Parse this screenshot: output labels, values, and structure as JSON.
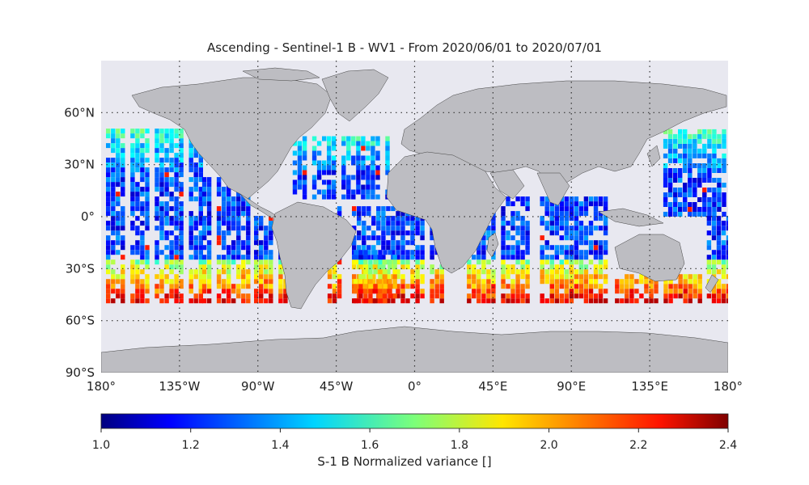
{
  "title": "Ascending - Sentinel-1 B - WV1 - From 2020/06/01 to 2020/07/01",
  "map": {
    "projection": "equirectangular",
    "lon_range": [
      -180,
      180
    ],
    "lat_range": [
      -90,
      90
    ],
    "ocean_color": "#e8e8f0",
    "land_color": "#bdbdc2",
    "grid_style": "dotted",
    "lat_labels": [
      "60°N",
      "30°N",
      "0°",
      "30°S",
      "60°S",
      "90°S"
    ],
    "lat_values": [
      60,
      30,
      0,
      -30,
      -60,
      -90
    ],
    "lon_labels": [
      "180°",
      "135°W",
      "90°W",
      "45°W",
      "0°",
      "45°E",
      "90°E",
      "135°E",
      "180°"
    ],
    "lon_values": [
      -180,
      -135,
      -90,
      -45,
      0,
      45,
      90,
      135,
      180
    ],
    "data_lat_range": [
      -50,
      50
    ]
  },
  "colorbar": {
    "title": "S-1 B Normalized variance []",
    "ticks": [
      "1.0",
      "1.2",
      "1.4",
      "1.6",
      "1.8",
      "2.0",
      "2.2",
      "2.4"
    ],
    "range": [
      1.0,
      2.4
    ],
    "colormap": "jet"
  }
}
